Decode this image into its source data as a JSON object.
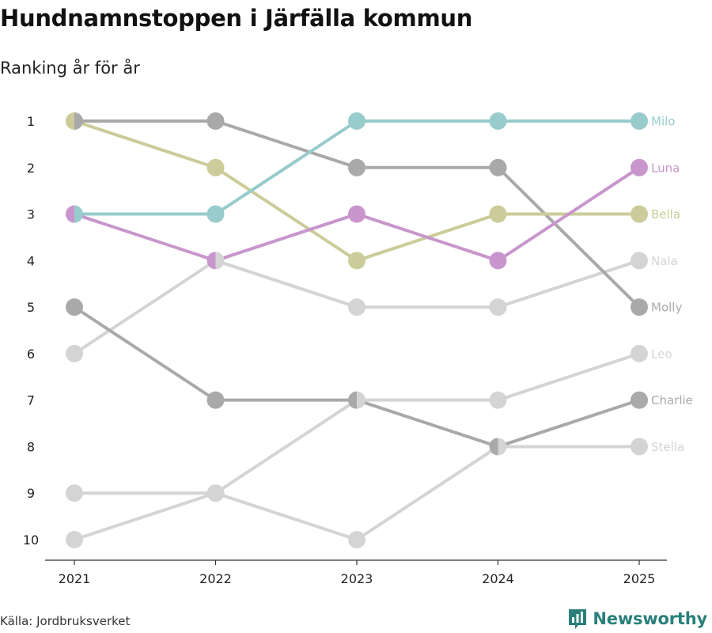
{
  "header": {
    "title": "Hundnamnstoppen i Järfälla kommun",
    "subtitle": "Ranking år för år"
  },
  "footer": {
    "source": "Källa: Jordbruksverket",
    "brand": "Newsworthy"
  },
  "colors": {
    "Milo": "#98cbcb",
    "Luna": "#c896cc",
    "Bella": "#cbcc99",
    "Nala": "#d4d4d4",
    "Molly": "#a9a9a9",
    "Leo": "#d4d4d4",
    "Charlie": "#a9a9a9",
    "Stella": "#d4d4d4",
    "axis": "#333333",
    "brand": "#2a7f7a"
  },
  "chart_data": {
    "type": "line",
    "title": "Hundnamnstoppen i Järfälla kommun",
    "subtitle": "Ranking år för år",
    "x": [
      "2021",
      "2022",
      "2023",
      "2024",
      "2025"
    ],
    "xlabel": "",
    "ylabel": "",
    "y_ticks": [
      "1",
      "2",
      "3",
      "4",
      "5",
      "6",
      "7",
      "8",
      "9",
      "10"
    ],
    "ylim": [
      10,
      1
    ],
    "series": [
      {
        "name": "Nala",
        "values": [
          6,
          4,
          5,
          5,
          4
        ]
      },
      {
        "name": "Leo",
        "values": [
          10,
          9,
          7,
          7,
          6
        ]
      },
      {
        "name": "Stella",
        "values": [
          9,
          9,
          10,
          8,
          8
        ]
      },
      {
        "name": "Molly",
        "values": [
          1,
          1,
          2,
          2,
          5
        ]
      },
      {
        "name": "Charlie",
        "values": [
          5,
          7,
          7,
          8,
          7
        ]
      },
      {
        "name": "Bella",
        "values": [
          1,
          2,
          4,
          3,
          3
        ]
      },
      {
        "name": "Milo",
        "values": [
          3,
          3,
          1,
          1,
          1
        ]
      },
      {
        "name": "Luna",
        "values": [
          3,
          4,
          3,
          4,
          2
        ]
      }
    ]
  }
}
